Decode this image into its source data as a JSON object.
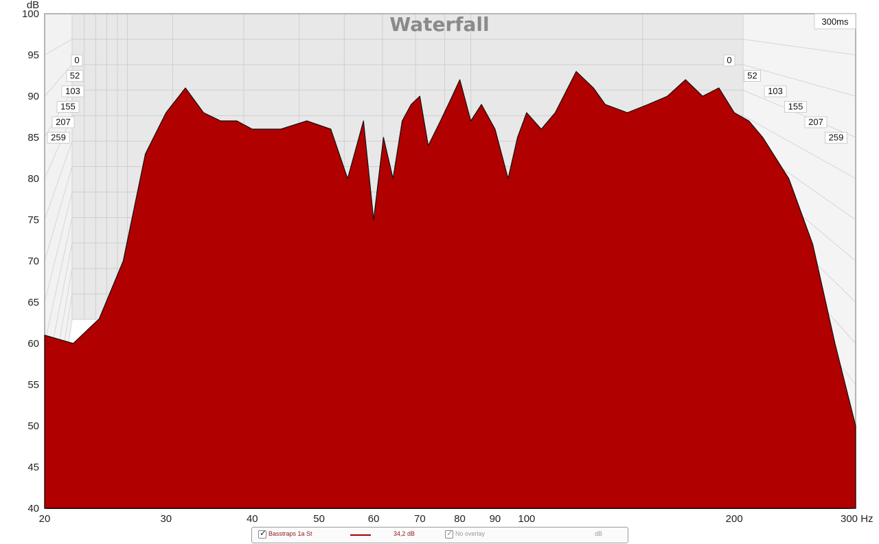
{
  "chart_data": {
    "type": "area",
    "title": "Waterfall",
    "xlabel": "Hz",
    "ylabel": "dB",
    "x_scale": "log",
    "xlim": [
      20,
      300
    ],
    "ylim": [
      40,
      100
    ],
    "x_ticks": [
      {
        "label": "20",
        "value": 20
      },
      {
        "label": "30",
        "value": 30
      },
      {
        "label": "40",
        "value": 40
      },
      {
        "label": "50",
        "value": 50
      },
      {
        "label": "60",
        "value": 60
      },
      {
        "label": "70",
        "value": 70
      },
      {
        "label": "80",
        "value": 80
      },
      {
        "label": "90",
        "value": 90
      },
      {
        "label": "100",
        "value": 100
      },
      {
        "label": "200",
        "value": 200
      },
      {
        "label": "300 Hz",
        "value": 300
      }
    ],
    "y_ticks": [
      100,
      95,
      90,
      85,
      80,
      75,
      70,
      65,
      60,
      55,
      50,
      45,
      40
    ],
    "time_range_label": "300ms",
    "time_slices_ms": [
      0,
      52,
      103,
      155,
      207,
      259
    ],
    "fill_color": "#b00000",
    "line_color": "#111111",
    "grid": true,
    "series": [
      {
        "name": "Basstraps 1a St",
        "x": [
          20,
          22,
          24,
          26,
          28,
          30,
          32,
          34,
          36,
          38,
          40,
          44,
          48,
          52,
          55,
          58,
          60,
          62,
          64,
          66,
          68,
          70,
          72,
          75,
          78,
          80,
          83,
          86,
          90,
          94,
          97,
          100,
          105,
          110,
          118,
          125,
          130,
          140,
          150,
          160,
          170,
          180,
          190,
          200,
          210,
          220,
          240,
          260,
          280,
          300
        ],
        "values": [
          61,
          60,
          63,
          70,
          83,
          88,
          91,
          88,
          87,
          87,
          86,
          86,
          87,
          86,
          80,
          87,
          75,
          85,
          80,
          87,
          89,
          90,
          84,
          87,
          90,
          92,
          87,
          89,
          86,
          80,
          85,
          88,
          86,
          88,
          93,
          91,
          89,
          88,
          89,
          90,
          92,
          90,
          91,
          88,
          87,
          85,
          80,
          72,
          60,
          50
        ]
      }
    ]
  },
  "legend": {
    "series_name": "Basstraps 1a St",
    "level": "34,2 dB",
    "overlay": "No overlay",
    "unit": "dB"
  }
}
